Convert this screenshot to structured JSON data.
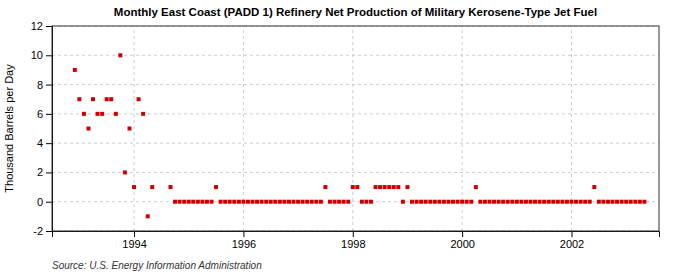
{
  "chart_data": {
    "type": "scatter",
    "title": "Monthly East Coast (PADD 1) Refinery Net Production of Military Kerosene-Type Jet Fuel",
    "ylabel": "Thousand Barrels per Day",
    "source": "Source: U.S. Energy Information Administration",
    "color": "#cc0000",
    "marker": "square",
    "grid": true,
    "xlim": [
      1992.5,
      2003.6
    ],
    "xticks": [
      1994,
      1996,
      1998,
      2000,
      2002
    ],
    "ylim": [
      -2,
      12
    ],
    "yticks": [
      -2,
      0,
      2,
      4,
      6,
      8,
      10,
      12
    ],
    "x": [
      1992.917,
      1993.0,
      1993.083,
      1993.167,
      1993.25,
      1993.333,
      1993.417,
      1993.5,
      1993.583,
      1993.667,
      1993.75,
      1993.833,
      1993.917,
      1994.0,
      1994.083,
      1994.167,
      1994.25,
      1994.333,
      1994.667,
      1994.75,
      1994.833,
      1994.917,
      1995.0,
      1995.083,
      1995.167,
      1995.25,
      1995.333,
      1995.417,
      1995.5,
      1995.583,
      1995.667,
      1995.75,
      1995.833,
      1995.917,
      1996.0,
      1996.083,
      1996.167,
      1996.25,
      1996.333,
      1996.417,
      1996.5,
      1996.583,
      1996.667,
      1996.75,
      1996.833,
      1996.917,
      1997.0,
      1997.083,
      1997.167,
      1997.25,
      1997.333,
      1997.417,
      1997.5,
      1997.583,
      1997.667,
      1997.75,
      1997.833,
      1997.917,
      1998.0,
      1998.083,
      1998.167,
      1998.25,
      1998.333,
      1998.417,
      1998.5,
      1998.583,
      1998.667,
      1998.75,
      1998.833,
      1998.917,
      1999.0,
      1999.083,
      1999.167,
      1999.25,
      1999.333,
      1999.417,
      1999.5,
      1999.583,
      1999.667,
      1999.75,
      1999.833,
      1999.917,
      2000.0,
      2000.083,
      2000.167,
      2000.25,
      2000.333,
      2000.417,
      2000.5,
      2000.583,
      2000.667,
      2000.75,
      2000.833,
      2000.917,
      2001.0,
      2001.083,
      2001.167,
      2001.25,
      2001.333,
      2001.417,
      2001.5,
      2001.583,
      2001.667,
      2001.75,
      2001.833,
      2001.917,
      2002.0,
      2002.083,
      2002.167,
      2002.25,
      2002.333,
      2002.417,
      2002.5,
      2002.583,
      2002.667,
      2002.75,
      2002.833,
      2002.917,
      2003.0,
      2003.083,
      2003.167,
      2003.25,
      2003.333
    ],
    "values": [
      9.0,
      7.0,
      6.0,
      5.0,
      7.0,
      6.0,
      6.0,
      7.0,
      7.0,
      6.0,
      10.0,
      2.0,
      5.0,
      1.0,
      7.0,
      6.0,
      -1.0,
      1.0,
      1.0,
      0.0,
      0.0,
      0.0,
      0.0,
      0.0,
      0.0,
      0.0,
      0.0,
      0.0,
      1.0,
      0.0,
      0.0,
      0.0,
      0.0,
      0.0,
      0.0,
      0.0,
      0.0,
      0.0,
      0.0,
      0.0,
      0.0,
      0.0,
      0.0,
      0.0,
      0.0,
      0.0,
      0.0,
      0.0,
      0.0,
      0.0,
      0.0,
      0.0,
      1.0,
      0.0,
      0.0,
      0.0,
      0.0,
      0.0,
      1.0,
      1.0,
      0.0,
      0.0,
      0.0,
      1.0,
      1.0,
      1.0,
      1.0,
      1.0,
      1.0,
      0.0,
      1.0,
      0.0,
      0.0,
      0.0,
      0.0,
      0.0,
      0.0,
      0.0,
      0.0,
      0.0,
      0.0,
      0.0,
      0.0,
      0.0,
      0.0,
      1.0,
      0.0,
      0.0,
      0.0,
      0.0,
      0.0,
      0.0,
      0.0,
      0.0,
      0.0,
      0.0,
      0.0,
      0.0,
      0.0,
      0.0,
      0.0,
      0.0,
      0.0,
      0.0,
      0.0,
      0.0,
      0.0,
      0.0,
      0.0,
      0.0,
      0.0,
      1.0,
      0.0,
      0.0,
      0.0,
      0.0,
      0.0,
      0.0,
      0.0,
      0.0,
      0.0,
      0.0,
      0.0
    ]
  }
}
